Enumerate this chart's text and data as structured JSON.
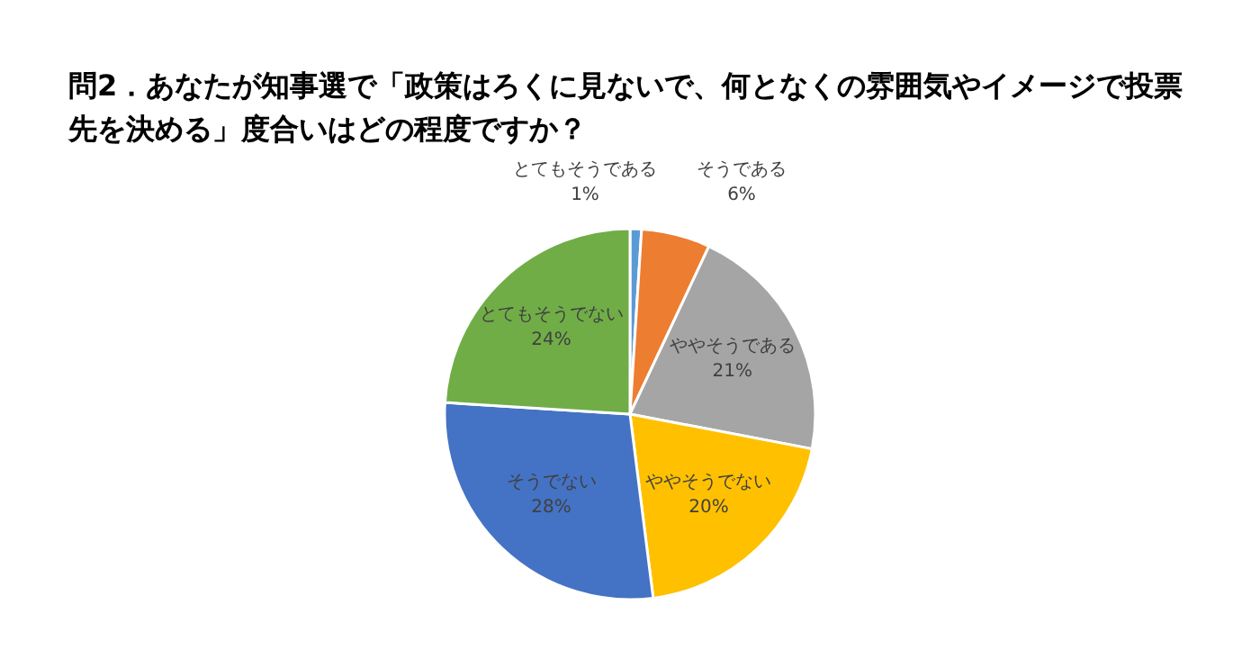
{
  "chart_data": {
    "type": "pie",
    "title": "問2．あなたが知事選で「政策はろくに見ないで、何となくの雰囲気やイメージで投票先を決める」度合いはどの程度ですか？",
    "categories": [
      "とてもそうである",
      "そうである",
      "ややそうである",
      "ややそうでない",
      "そうでない",
      "とてもそうでない"
    ],
    "values": [
      1,
      6,
      21,
      20,
      28,
      24
    ],
    "colors": [
      "#5b9bd5",
      "#ed7d31",
      "#a5a5a5",
      "#ffc000",
      "#4472c4",
      "#70ad47"
    ],
    "value_labels": [
      "1%",
      "6%",
      "21%",
      "20%",
      "28%",
      "24%"
    ]
  }
}
